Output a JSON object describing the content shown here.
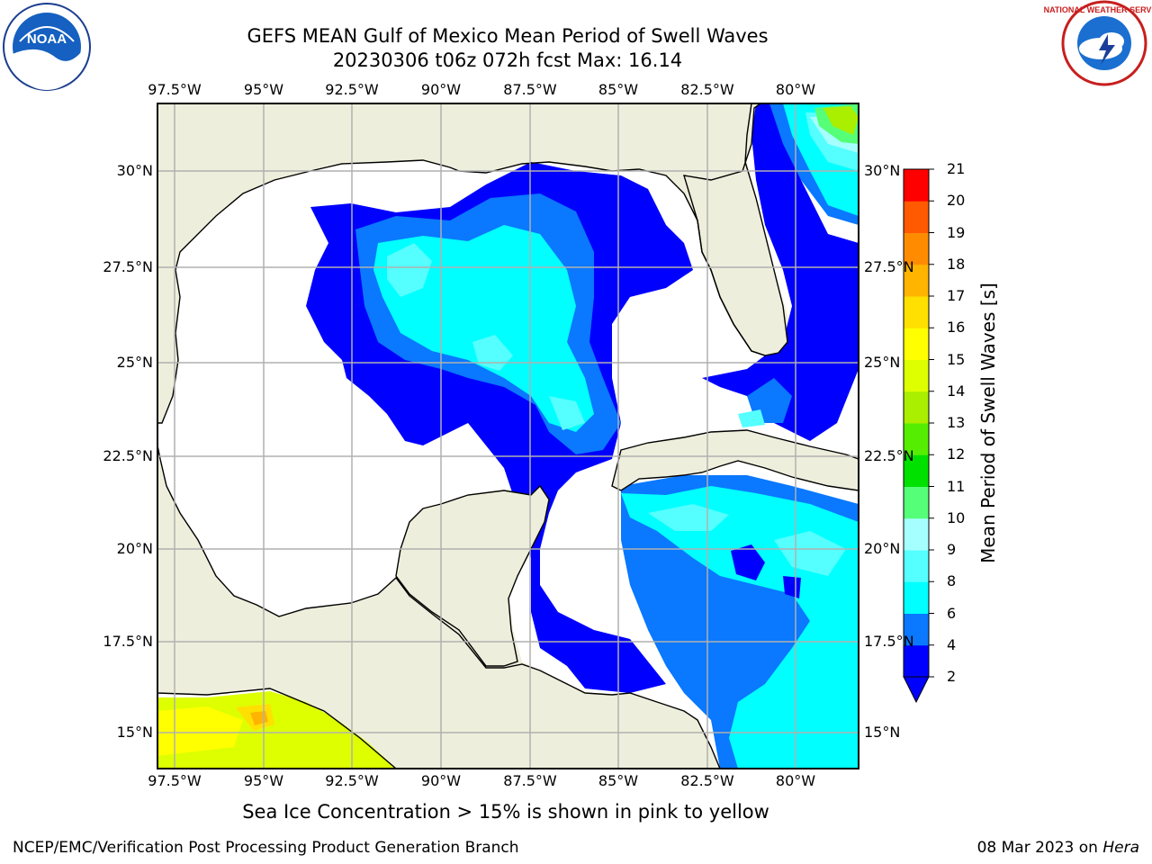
{
  "title": {
    "line1": "GEFS MEAN Gulf of Mexico Mean Period of Swell Waves",
    "line2": "20230306 t06z 072h fcst   Max: 16.14"
  },
  "map": {
    "lon_labels": [
      "97.5°W",
      "95°W",
      "92.5°W",
      "90°W",
      "87.5°W",
      "85°W",
      "82.5°W",
      "80°W"
    ],
    "lat_labels": [
      "30°N",
      "27.5°N",
      "25°N",
      "22.5°N",
      "20°N",
      "17.5°N",
      "15°N"
    ],
    "land_color": "#eeeedc",
    "coast_color": "#000000",
    "grid_color": "#b0b0b0"
  },
  "colorbar": {
    "label": "Mean Period of Swell Waves [s]",
    "ticks": [
      "2",
      "4",
      "6",
      "8",
      "9",
      "10",
      "11",
      "12",
      "13",
      "14",
      "15",
      "16",
      "17",
      "18",
      "19",
      "20",
      "21"
    ],
    "colors": [
      "#0000ff",
      "#0a78ff",
      "#00ffff",
      "#55ffff",
      "#a6ffff",
      "#55ff78",
      "#00e100",
      "#55ee00",
      "#aaee00",
      "#ddff00",
      "#ffff00",
      "#ffe000",
      "#ffb400",
      "#ff8c00",
      "#ff5a00",
      "#ff2800",
      "#ff0000"
    ],
    "under_color": "#0000ff"
  },
  "note": "Sea Ice Concentration > 15% is shown in pink to yellow",
  "credit": "NCEP/EMC/Verification Post Processing Product Generation Branch",
  "date": {
    "text": "08 Mar 2023 on",
    "machine": "Hera"
  },
  "logos": {
    "left": "NOAA",
    "right": "NATIONAL WEATHER SERVICE"
  }
}
